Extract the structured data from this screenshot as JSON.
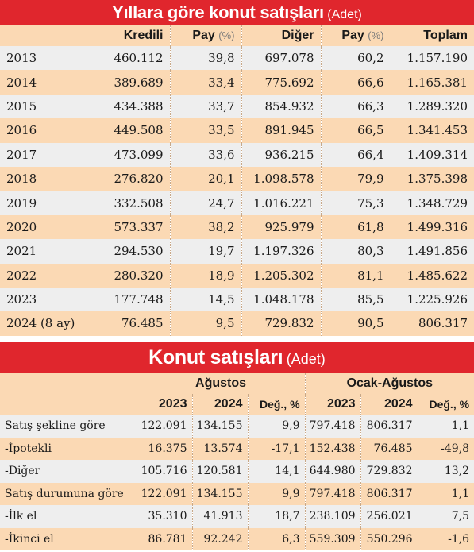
{
  "sales_by_year": {
    "title": "Yıllara göre konut satışları",
    "unit": "(Adet)",
    "headers": {
      "year": "",
      "kredili": "Kredili",
      "pay": "Pay",
      "pct": "(%)",
      "diger": "Diğer",
      "toplam": "Toplam"
    },
    "rows": [
      {
        "year": "2013",
        "kredili": "460.112",
        "kredili_pay": "39,8",
        "diger": "697.078",
        "diger_pay": "60,2",
        "toplam": "1.157.190"
      },
      {
        "year": "2014",
        "kredili": "389.689",
        "kredili_pay": "33,4",
        "diger": "775.692",
        "diger_pay": "66,6",
        "toplam": "1.165.381"
      },
      {
        "year": "2015",
        "kredili": "434.388",
        "kredili_pay": "33,7",
        "diger": "854.932",
        "diger_pay": "66,3",
        "toplam": "1.289.320"
      },
      {
        "year": "2016",
        "kredili": "449.508",
        "kredili_pay": "33,5",
        "diger": "891.945",
        "diger_pay": "66,5",
        "toplam": "1.341.453"
      },
      {
        "year": "2017",
        "kredili": "473.099",
        "kredili_pay": "33,6",
        "diger": "936.215",
        "diger_pay": "66,4",
        "toplam": "1.409.314"
      },
      {
        "year": "2018",
        "kredili": "276.820",
        "kredili_pay": "20,1",
        "diger": "1.098.578",
        "diger_pay": "79,9",
        "toplam": "1.375.398"
      },
      {
        "year": "2019",
        "kredili": "332.508",
        "kredili_pay": "24,7",
        "diger": "1.016.221",
        "diger_pay": "75,3",
        "toplam": "1.348.729"
      },
      {
        "year": "2020",
        "kredili": "573.337",
        "kredili_pay": "38,2",
        "diger": "925.979",
        "diger_pay": "61,8",
        "toplam": "1.499.316"
      },
      {
        "year": "2021",
        "kredili": "294.530",
        "kredili_pay": "19,7",
        "diger": "1.197.326",
        "diger_pay": "80,3",
        "toplam": "1.491.856"
      },
      {
        "year": "2022",
        "kredili": "280.320",
        "kredili_pay": "18,9",
        "diger": "1.205.302",
        "diger_pay": "81,1",
        "toplam": "1.485.622"
      },
      {
        "year": "2023",
        "kredili": "177.748",
        "kredili_pay": "14,5",
        "diger": "1.048.178",
        "diger_pay": "85,5",
        "toplam": "1.225.926"
      },
      {
        "year": "2024 (8 ay)",
        "kredili": "76.485",
        "kredili_pay": "9,5",
        "diger": "729.832",
        "diger_pay": "90,5",
        "toplam": "806.317"
      }
    ]
  },
  "housing_sales": {
    "title": "Konut satışları",
    "unit": "(Adet)",
    "group_headers": {
      "august": "Ağustos",
      "jan_aug": "Ocak-Ağustos"
    },
    "sub_headers": {
      "y2023": "2023",
      "y2024": "2024",
      "delta": "Değ., %"
    },
    "rows": [
      {
        "label": "Satış şekline göre",
        "aug_2023": "122.091",
        "aug_2024": "134.155",
        "aug_delta": "9,9",
        "ytd_2023": "797.418",
        "ytd_2024": "806.317",
        "ytd_delta": "1,1"
      },
      {
        "label": "-İpotekli",
        "aug_2023": "16.375",
        "aug_2024": "13.574",
        "aug_delta": "-17,1",
        "ytd_2023": "152.438",
        "ytd_2024": "76.485",
        "ytd_delta": "-49,8"
      },
      {
        "label": "-Diğer",
        "aug_2023": "105.716",
        "aug_2024": "120.581",
        "aug_delta": "14,1",
        "ytd_2023": "644.980",
        "ytd_2024": "729.832",
        "ytd_delta": "13,2"
      },
      {
        "label": "Satış durumuna göre",
        "aug_2023": "122.091",
        "aug_2024": "134.155",
        "aug_delta": "9,9",
        "ytd_2023": "797.418",
        "ytd_2024": "806.317",
        "ytd_delta": "1,1"
      },
      {
        "label": "-İlk el",
        "aug_2023": "35.310",
        "aug_2024": "41.913",
        "aug_delta": "18,7",
        "ytd_2023": "238.109",
        "ytd_2024": "256.021",
        "ytd_delta": "7,5"
      },
      {
        "label": "-İkinci el",
        "aug_2023": "86.781",
        "aug_2024": "92.242",
        "aug_delta": "6,3",
        "ytd_2023": "559.309",
        "ytd_2024": "550.296",
        "ytd_delta": "-1,6"
      }
    ]
  },
  "colors": {
    "title_red": "#e0262d",
    "peach": "#fbd9b4",
    "grey": "#eeeeee"
  }
}
